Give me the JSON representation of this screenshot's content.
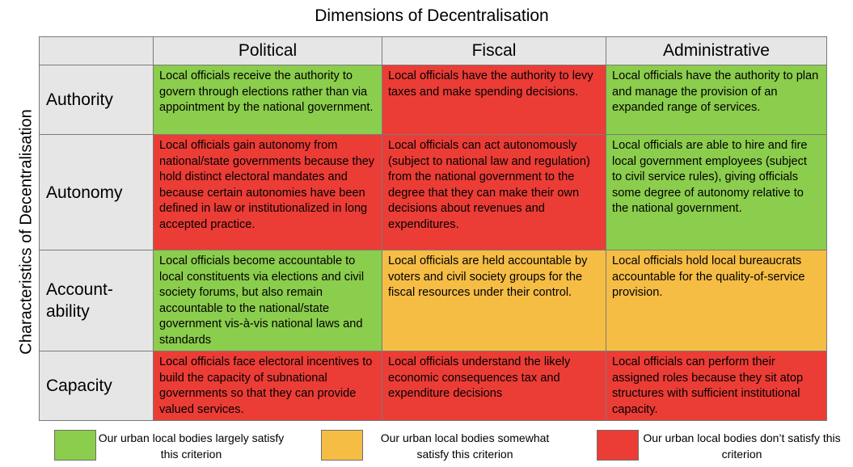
{
  "title": "Dimensions of Decentralisation",
  "side_label": "Characteristics of Decentralisation",
  "columns": [
    "Political",
    "Fiscal",
    "Administrative"
  ],
  "rows": [
    {
      "label": "Authority",
      "cells": [
        {
          "text": "Local officials receive the authority to govern through elections rather than via appointment by the national government.",
          "status": "green"
        },
        {
          "text": "Local officials have the authority to levy taxes and make spending decisions.",
          "status": "red"
        },
        {
          "text": "Local officials have the authority to plan and manage the provision of an expanded range of services.",
          "status": "green"
        }
      ]
    },
    {
      "label": "Autonomy",
      "cells": [
        {
          "text": "Local officials gain autonomy from national/state governments because they hold distinct electoral mandates and because certain autonomies have been defined in law or institutionalized in long accepted practice.",
          "status": "red"
        },
        {
          "text": "Local officials can act autonomously (subject to national law and regulation) from the national government to the degree that they can make their own decisions about revenues and expenditures.",
          "status": "red"
        },
        {
          "text": "Local officials are able to hire and fire local government employees (subject to civil service rules), giving officials some degree of autonomy relative to the national government.",
          "status": "green"
        }
      ]
    },
    {
      "label": "Account-ability",
      "cells": [
        {
          "text": "Local officials become accountable to local constituents via elections and civil society forums, but also remain accountable to the national/state government vis-à-vis national laws and standards",
          "status": "green"
        },
        {
          "text": "Local officials are held accountable by voters and civil society groups for the fiscal resources under their control.",
          "status": "amber"
        },
        {
          "text": "Local officials hold local bureaucrats accountable for the quality-of-service provision.",
          "status": "amber"
        }
      ]
    },
    {
      "label": "Capacity",
      "cells": [
        {
          "text": "Local officials face electoral incentives to build the capacity of subnational governments so that they can provide valued services.",
          "status": "red"
        },
        {
          "text": "Local officials understand the likely economic consequences tax and expenditure decisions",
          "status": "red"
        },
        {
          "text": "Local officials can perform their assigned roles because they sit atop structures with sufficient institutional capacity.",
          "status": "red"
        }
      ]
    }
  ],
  "legend": [
    {
      "text": "Our urban local bodies largely satisfy this criterion",
      "color": "#8bcd4c"
    },
    {
      "text": "Our urban local bodies somewhat satisfy this criterion",
      "color": "#f6bd45"
    },
    {
      "text": "Our urban local bodies don’t satisfy this criterion",
      "color": "#ec3c36"
    }
  ],
  "colors": {
    "green": "#8bcd4c",
    "amber": "#f6bd45",
    "red": "#ec3c36",
    "header_bg": "#e6e6e6"
  }
}
